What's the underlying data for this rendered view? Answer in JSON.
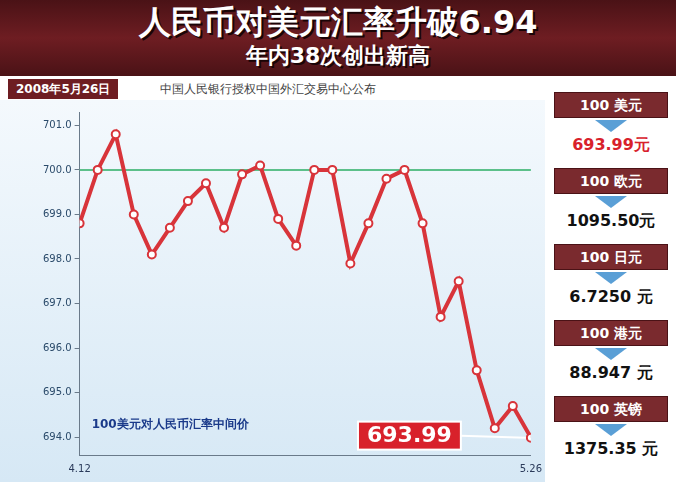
{
  "chart_data": {
    "type": "line",
    "title": "人民币对美元汇率升破6.94",
    "subtitle": "年内38次创出新高",
    "categories": [
      "4.12",
      null,
      null,
      null,
      null,
      null,
      null,
      null,
      null,
      null,
      null,
      null,
      null,
      null,
      null,
      null,
      null,
      null,
      null,
      null,
      null,
      null,
      null,
      null,
      null,
      "5.26"
    ],
    "series": [
      {
        "name": "100美元对人民币汇率中间价",
        "color": "#d8343a",
        "values": [
          698.8,
          700.0,
          700.8,
          699.0,
          698.1,
          698.7,
          699.3,
          699.7,
          698.7,
          699.9,
          700.1,
          698.9,
          698.3,
          700.0,
          700.0,
          697.9,
          698.8,
          699.8,
          700.0,
          698.8,
          696.7,
          697.5,
          695.5,
          694.2,
          694.7,
          693.99
        ]
      }
    ],
    "ylim": [
      693.6,
      701.3
    ],
    "yticks": [
      {
        "value": 694,
        "label": "694.0"
      },
      {
        "value": 695,
        "label": "695.0"
      },
      {
        "value": 696,
        "label": "696.0"
      },
      {
        "value": 697,
        "label": "697.0"
      },
      {
        "value": 698,
        "label": "698.0"
      },
      {
        "value": 699,
        "label": "699.0"
      },
      {
        "value": 700,
        "label": "700.0"
      },
      {
        "value": 701,
        "label": "701.0"
      }
    ],
    "grid": false,
    "marker": "circle",
    "reference_lines": [
      700
    ],
    "annotations": [
      {
        "text": "693.99"
      }
    ]
  },
  "header": {
    "date": "2008年5月26日",
    "source": "中国人民银行授权中国外汇交易中心公布"
  },
  "side_panel": [
    {
      "label": "100 美元",
      "value": "693.99元"
    },
    {
      "label": "100 欧元",
      "value": "1095.50元"
    },
    {
      "label": "100 日元",
      "value": "6.7250 元"
    },
    {
      "label": "100 港元",
      "value": "88.947 元"
    },
    {
      "label": "100 英镑",
      "value": "1375.35 元"
    }
  ]
}
